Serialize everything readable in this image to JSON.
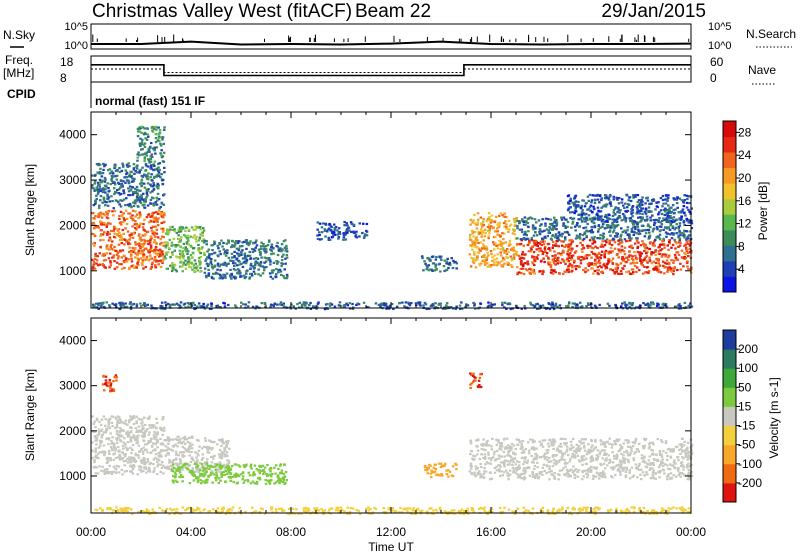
{
  "header": {
    "station": "Christmas Valley West (fitACF)",
    "beam": "Beam 22",
    "date": "29/Jan/2015"
  },
  "top_panels": {
    "nsky_label": "N.Sky",
    "nsky_ticks": [
      "10^5",
      "10^0"
    ],
    "nsearch_label": "N.Search",
    "nsearch_ticks": [
      "10^5",
      "10^0"
    ],
    "freq_label_1": "Freq.",
    "freq_label_2": "[MHz]",
    "freq_ticks": [
      "18",
      "8"
    ],
    "nave_label": "Nave",
    "nave_ticks": [
      "60",
      "0"
    ],
    "cpid_label": "CPID",
    "cpid_value": "normal (fast) 151 IF"
  },
  "time_axis": {
    "label": "Time UT",
    "ticks": [
      "00:00",
      "04:00",
      "08:00",
      "12:00",
      "16:00",
      "20:00",
      "00:00"
    ]
  },
  "colors": {
    "power_scale": [
      "#0a14e6",
      "#1f3fb4",
      "#2f6f8f",
      "#3c8c5a",
      "#58b84e",
      "#a8cc3c",
      "#f2c12e",
      "#f59a24",
      "#f0641e",
      "#e62814",
      "#d70a0a"
    ],
    "velocity_scale": [
      "#e0140e",
      "#f06a14",
      "#f7a72a",
      "#f4cf3c",
      "#c8c8c0",
      "#7ccb3e",
      "#3ea83a",
      "#2c7a60",
      "#1e3c9c"
    ],
    "gray": "#c8c8c0"
  },
  "chart_data": [
    {
      "type": "line",
      "panel": "noise",
      "series": [
        {
          "name": "N.Sky",
          "x": [
            "00:00",
            "02:00",
            "04:00",
            "06:00",
            "08:00",
            "10:00",
            "12:00",
            "14:00",
            "16:00",
            "18:00",
            "20:00",
            "22:00",
            "24:00"
          ],
          "values": [
            10,
            10,
            30,
            8,
            10,
            8,
            12,
            30,
            10,
            8,
            10,
            10,
            12
          ]
        }
      ],
      "ylim_labels": [
        "10^0",
        "10^5"
      ],
      "log_scale": true
    },
    {
      "type": "line",
      "panel": "frequency-nave",
      "series": [
        {
          "name": "Freq.",
          "x": [
            "00:00",
            "02:55",
            "02:55",
            "14:55",
            "14:55",
            "24:00"
          ],
          "values": [
            14.6,
            14.6,
            10.5,
            10.5,
            14.6,
            14.6
          ]
        },
        {
          "name": "Nave",
          "x": [
            "00:00",
            "02:55",
            "02:55",
            "14:55",
            "14:55",
            "24:00"
          ],
          "values": [
            30,
            30,
            22,
            22,
            30,
            30
          ]
        }
      ],
      "ylim": [
        8,
        18
      ],
      "ylim_right": [
        0,
        60
      ]
    },
    {
      "type": "heatmap",
      "panel": "power",
      "title": "",
      "xlabel": "",
      "ylabel": "Slant Range [km]",
      "xlim": [
        "00:00",
        "24:00"
      ],
      "ylim": [
        180,
        4500
      ],
      "yticks": [
        1000,
        2000,
        3000,
        4000
      ],
      "colorbar_label": "Power [dB]",
      "colorbar_ticks": [
        4,
        8,
        12,
        16,
        20,
        24,
        28
      ],
      "colorbar_range": [
        0,
        30
      ],
      "regions": [
        {
          "t0": 0.0,
          "t1": 2.9,
          "r0": 1050,
          "r1": 2350,
          "v": 24
        },
        {
          "t0": 0.0,
          "t1": 2.9,
          "r0": 2400,
          "r1": 3400,
          "v": 6
        },
        {
          "t0": 1.8,
          "t1": 2.9,
          "r0": 3400,
          "r1": 4200,
          "v": 8
        },
        {
          "t0": 2.9,
          "t1": 4.5,
          "r0": 1000,
          "r1": 2000,
          "v": 12
        },
        {
          "t0": 4.5,
          "t1": 7.8,
          "r0": 850,
          "r1": 1700,
          "v": 6
        },
        {
          "t0": 9.0,
          "t1": 11.0,
          "r0": 1700,
          "r1": 2100,
          "v": 4
        },
        {
          "t0": 13.2,
          "t1": 14.6,
          "r0": 1000,
          "r1": 1350,
          "v": 6
        },
        {
          "t0": 15.1,
          "t1": 17.0,
          "r0": 1100,
          "r1": 2300,
          "v": 20
        },
        {
          "t0": 17.0,
          "t1": 24.0,
          "r0": 950,
          "r1": 1700,
          "v": 26
        },
        {
          "t0": 17.0,
          "t1": 24.0,
          "r0": 1700,
          "r1": 2200,
          "v": 6
        },
        {
          "t0": 19.0,
          "t1": 24.0,
          "r0": 2100,
          "r1": 2700,
          "v": 4
        },
        {
          "t0": 0.0,
          "t1": 24.0,
          "r0": 180,
          "r1": 330,
          "v": 5
        }
      ]
    },
    {
      "type": "heatmap",
      "panel": "velocity",
      "title": "",
      "xlabel": "Time UT",
      "ylabel": "Slant Range [km]",
      "xlim": [
        "00:00",
        "24:00"
      ],
      "ylim": [
        180,
        4500
      ],
      "yticks": [
        1000,
        2000,
        3000,
        4000
      ],
      "colorbar_label": "Velocity [m s-1]",
      "colorbar_ticks": [
        200,
        100,
        50,
        15,
        -15,
        -50,
        -100,
        -200
      ],
      "regions": [
        {
          "t0": 0.0,
          "t1": 2.9,
          "r0": 1050,
          "r1": 2350,
          "v": 0
        },
        {
          "t0": 0.4,
          "t1": 1.0,
          "r0": 2900,
          "r1": 3300,
          "v": -200
        },
        {
          "t0": 2.9,
          "t1": 5.5,
          "r0": 1100,
          "r1": 1900,
          "v": 0
        },
        {
          "t0": 3.2,
          "t1": 7.8,
          "r0": 850,
          "r1": 1300,
          "v": 40
        },
        {
          "t0": 13.3,
          "t1": 14.6,
          "r0": 1000,
          "r1": 1300,
          "v": -80
        },
        {
          "t0": 15.1,
          "t1": 24.0,
          "r0": 950,
          "r1": 1850,
          "v": 0
        },
        {
          "t0": 15.1,
          "t1": 15.6,
          "r0": 2950,
          "r1": 3300,
          "v": -200
        },
        {
          "t0": 0.0,
          "t1": 24.0,
          "r0": 180,
          "r1": 330,
          "v": -40
        }
      ]
    }
  ]
}
